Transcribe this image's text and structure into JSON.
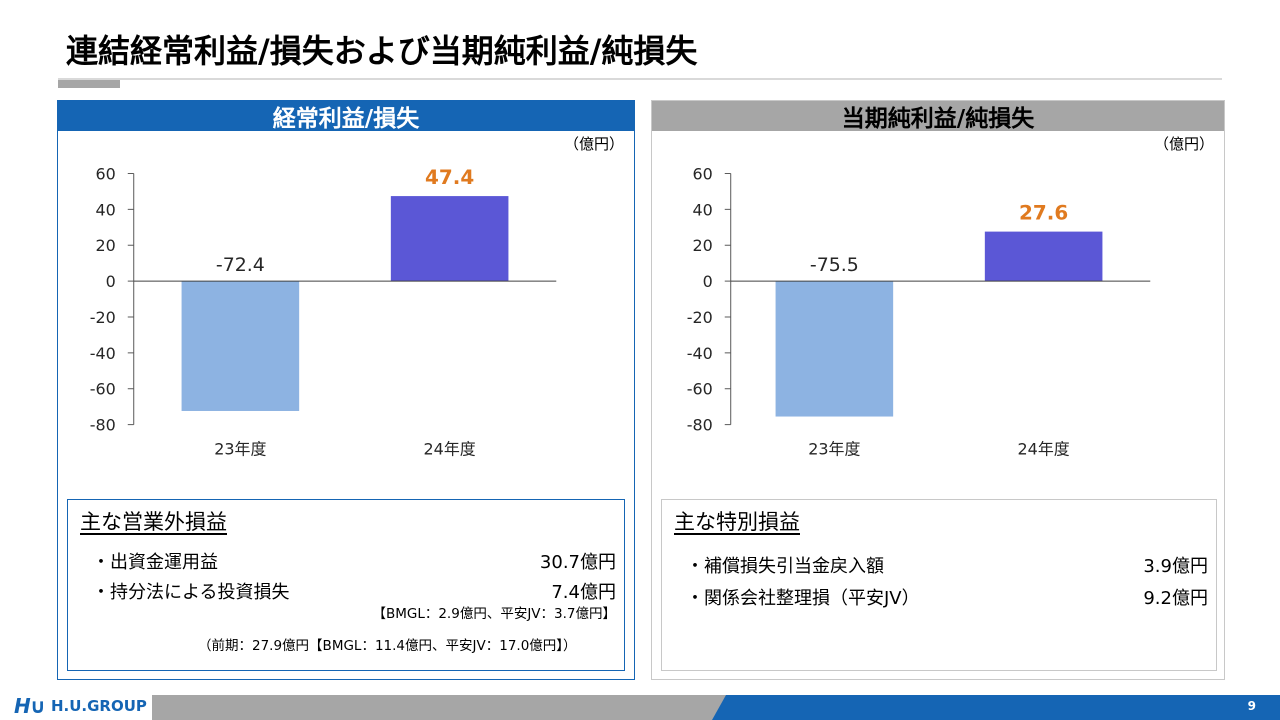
{
  "slide": {
    "title": "連結経常利益/損失および当期純利益/純損失",
    "page_number": "9",
    "logo": {
      "mark": "H∪",
      "text": "H.U.GROUP"
    }
  },
  "colors": {
    "accent_blue": "#1565b4",
    "gray": "#a6a6a6",
    "bar_prev": "#8db3e2",
    "bar_curr": "#5b57d6",
    "highlight": "#e07a1f"
  },
  "left_panel": {
    "title": "経常利益/損失",
    "unit": "（億円）",
    "notes": {
      "title": "主な営業外損益",
      "items": [
        {
          "label": "・出資金運用益",
          "value": "30.7億円"
        },
        {
          "label": "・持分法による投資損失",
          "value": "7.4億円"
        }
      ],
      "sub": "【BMGL：2.9億円、平安JV：3.7億円】",
      "prev": "（前期：27.9億円【BMGL：11.4億円、平安JV：17.0億円】）"
    }
  },
  "right_panel": {
    "title": "当期純利益/純損失",
    "unit": "（億円）",
    "notes": {
      "title": "主な特別損益",
      "items": [
        {
          "label": "・補償損失引当金戻入額",
          "value": "3.9億円"
        },
        {
          "label": "・関係会社整理損（平安JV）",
          "value": "9.2億円"
        }
      ]
    }
  },
  "chart_data": [
    {
      "type": "bar",
      "categories": [
        "23年度",
        "24年度"
      ],
      "values": [
        -72.4,
        47.4
      ],
      "value_labels": [
        "-72.4",
        "47.4"
      ],
      "yticks": [
        "60",
        "40",
        "20",
        "0",
        "-20",
        "-40",
        "-60",
        "-80"
      ],
      "ylim": [
        -80,
        60
      ],
      "grid": false,
      "bar_colors": [
        "#8db3e2",
        "#5b57d6"
      ],
      "label_colors": [
        "#262626",
        "#e07a1f"
      ]
    },
    {
      "type": "bar",
      "categories": [
        "23年度",
        "24年度"
      ],
      "values": [
        -75.5,
        27.6
      ],
      "value_labels": [
        "-75.5",
        "27.6"
      ],
      "yticks": [
        "60",
        "40",
        "20",
        "0",
        "-20",
        "-40",
        "-60",
        "-80"
      ],
      "ylim": [
        -80,
        60
      ],
      "grid": false,
      "bar_colors": [
        "#8db3e2",
        "#5b57d6"
      ],
      "label_colors": [
        "#262626",
        "#e07a1f"
      ]
    }
  ]
}
